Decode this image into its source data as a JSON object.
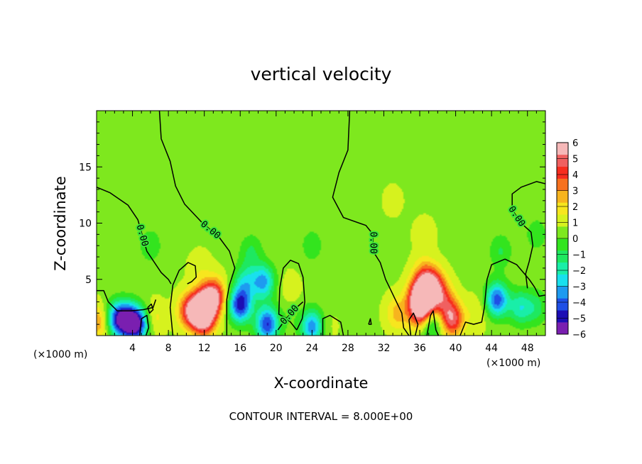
{
  "chart_data": {
    "type": "heatmap",
    "title": "vertical velocity",
    "xlabel": "X-coordinate",
    "ylabel": "Z-coordinate",
    "x_unit_left": "(×1000 m)",
    "x_unit_right": "(×1000 m)",
    "xlim": [
      0,
      50
    ],
    "ylim": [
      0,
      20
    ],
    "x_ticks": [
      4,
      8,
      12,
      16,
      20,
      24,
      28,
      32,
      36,
      40,
      44,
      48
    ],
    "x_tick_labels": [
      "4",
      "8",
      "12",
      "16",
      "20",
      "24",
      "28",
      "32",
      "36",
      "40",
      "44",
      "48"
    ],
    "y_ticks": [
      5,
      10,
      15
    ],
    "y_tick_labels": [
      "5",
      "10",
      "15"
    ],
    "colorbar": {
      "min": -6,
      "max": 6,
      "ticks": [
        6,
        5,
        4,
        3,
        2,
        1,
        0,
        -1,
        -2,
        -3,
        -4,
        -5,
        -6
      ],
      "tick_labels": [
        "6",
        "5",
        "4",
        "3",
        "2",
        "1",
        "0",
        "−1",
        "−2",
        "−3",
        "−4",
        "−5",
        "−6"
      ],
      "colors": [
        "#7a1fb0",
        "#1c0db4",
        "#1f4fe6",
        "#1e9af0",
        "#19e0ee",
        "#19eea8",
        "#1ee860",
        "#33e41e",
        "#7ee81e",
        "#d6f21e",
        "#f7e61e",
        "#f7b41e",
        "#f7711e",
        "#f72d1e",
        "#f06060",
        "#f6b8b8"
      ]
    },
    "background_value": 0.6,
    "field_features": [
      {
        "x": 2.2,
        "z": 1.5,
        "value": -3.5
      },
      {
        "x": 3.5,
        "z": 1.3,
        "value": -4.8
      },
      {
        "x": 4.7,
        "z": 1.0,
        "value": -4.0
      },
      {
        "x": 0.3,
        "z": 1.2,
        "value": 3.0
      },
      {
        "x": 6.3,
        "z": 1.5,
        "value": 2.0
      },
      {
        "x": 10.2,
        "z": 2.2,
        "value": 3.5
      },
      {
        "x": 11.3,
        "z": 2.3,
        "value": 5.0
      },
      {
        "x": 12.5,
        "z": 3.0,
        "value": 5.5
      },
      {
        "x": 12.0,
        "z": 1.4,
        "value": 4.5
      },
      {
        "x": 13.3,
        "z": 3.7,
        "value": 3.2
      },
      {
        "x": 11.5,
        "z": 6.0,
        "value": 1.3
      },
      {
        "x": 16.0,
        "z": 2.7,
        "value": -4.8
      },
      {
        "x": 16.6,
        "z": 4.8,
        "value": -1.8
      },
      {
        "x": 18.6,
        "z": 4.8,
        "value": -3.2
      },
      {
        "x": 17.2,
        "z": 7.5,
        "value": -0.8
      },
      {
        "x": 19.0,
        "z": 1.0,
        "value": -4.5
      },
      {
        "x": 21.5,
        "z": 4.2,
        "value": 1.2
      },
      {
        "x": 21.3,
        "z": 1.5,
        "value": 0.2
      },
      {
        "x": 24.0,
        "z": 0.8,
        "value": -3.5
      },
      {
        "x": 25.8,
        "z": 0.8,
        "value": 1.0
      },
      {
        "x": 24.0,
        "z": 8.0,
        "value": -0.5
      },
      {
        "x": 33.5,
        "z": 2.0,
        "value": 2.5
      },
      {
        "x": 35.8,
        "z": 3.5,
        "value": 4.0
      },
      {
        "x": 36.6,
        "z": 3.3,
        "value": 5.8
      },
      {
        "x": 36.0,
        "z": 2.0,
        "value": 4.2
      },
      {
        "x": 37.6,
        "z": 4.5,
        "value": 4.0
      },
      {
        "x": 36.5,
        "z": 5.3,
        "value": 3.0
      },
      {
        "x": 38.6,
        "z": 3.2,
        "value": 3.2
      },
      {
        "x": 39.6,
        "z": 1.5,
        "value": 5.0
      },
      {
        "x": 37.2,
        "z": 1.0,
        "value": -1.8
      },
      {
        "x": 36.5,
        "z": 9.0,
        "value": 1.2
      },
      {
        "x": 33.0,
        "z": 12.0,
        "value": 1.0
      },
      {
        "x": 42.5,
        "z": 2.0,
        "value": 1.5
      },
      {
        "x": 44.6,
        "z": 3.2,
        "value": -4.2
      },
      {
        "x": 47.2,
        "z": 2.5,
        "value": -2.0
      },
      {
        "x": 49.0,
        "z": 2.5,
        "value": -1.0
      },
      {
        "x": 45.0,
        "z": 7.5,
        "value": -0.8
      },
      {
        "x": 6.0,
        "z": 8.0,
        "value": -0.6
      },
      {
        "x": 49.0,
        "z": 9.0,
        "value": -0.5
      }
    ],
    "contours": [
      {
        "label": "0.00",
        "points": [
          [
            7.0,
            20
          ],
          [
            7.2,
            17.5
          ],
          [
            8.2,
            15.5
          ],
          [
            8.8,
            13.3
          ],
          [
            9.8,
            11.7
          ],
          [
            11.8,
            10.0
          ],
          [
            13.6,
            8.8
          ],
          [
            14.8,
            7.5
          ],
          [
            15.4,
            6.0
          ],
          [
            14.8,
            4.5
          ],
          [
            14.5,
            3.2
          ],
          [
            14.5,
            0
          ]
        ]
      },
      {
        "label": "0.00",
        "points": [
          [
            0,
            13.2
          ],
          [
            1.5,
            12.7
          ],
          [
            3.5,
            11.6
          ],
          [
            4.6,
            10.3
          ],
          [
            5.6,
            7.5
          ],
          [
            7.2,
            5.6
          ],
          [
            8.0,
            5.0
          ],
          [
            8.3,
            4.6
          ]
        ]
      },
      {
        "label": "",
        "points": [
          [
            0,
            4.0
          ],
          [
            0.8,
            4.0
          ],
          [
            1.3,
            3.0
          ],
          [
            2.3,
            2.2
          ],
          [
            3.8,
            2.2
          ],
          [
            5.2,
            2.3
          ],
          [
            6.3,
            2.5
          ],
          [
            6.6,
            3.2
          ]
        ]
      },
      {
        "label": "",
        "points": [
          [
            8.5,
            0
          ],
          [
            8.2,
            2.5
          ],
          [
            8.5,
            4.5
          ],
          [
            9.2,
            5.8
          ],
          [
            10.2,
            6.5
          ],
          [
            11.0,
            6.2
          ],
          [
            11.1,
            5.2
          ],
          [
            10.6,
            4.8
          ],
          [
            10.1,
            4.6
          ]
        ]
      },
      {
        "label": "0.00",
        "points": [
          [
            28.2,
            20
          ],
          [
            28.0,
            16.5
          ],
          [
            27.0,
            14.5
          ],
          [
            26.3,
            12.3
          ],
          [
            27.5,
            10.5
          ],
          [
            30.0,
            9.8
          ],
          [
            30.8,
            9.0
          ],
          [
            30.8,
            7.5
          ],
          [
            31.6,
            6.5
          ],
          [
            32.2,
            5.0
          ],
          [
            32.8,
            4.0
          ],
          [
            33.4,
            3.0
          ],
          [
            34.0,
            2.0
          ],
          [
            34.2,
            0.7
          ],
          [
            34.8,
            0
          ]
        ]
      },
      {
        "label": "",
        "points": [
          [
            22.3,
            0.5
          ],
          [
            21.6,
            1.2
          ],
          [
            21.0,
            1.6
          ],
          [
            20.3,
            1.9
          ],
          [
            20.4,
            4.2
          ],
          [
            20.8,
            6.0
          ],
          [
            21.6,
            6.7
          ],
          [
            22.5,
            6.4
          ],
          [
            23.0,
            5.2
          ],
          [
            23.2,
            3.0
          ],
          [
            22.9,
            1.5
          ],
          [
            22.3,
            0.5
          ]
        ]
      },
      {
        "label": "0.00",
        "points": [
          [
            20.2,
            0.5
          ],
          [
            21.0,
            1.4
          ],
          [
            22.0,
            2.3
          ],
          [
            23.0,
            3.0
          ]
        ]
      },
      {
        "label": "",
        "points": [
          [
            25.2,
            0
          ],
          [
            25.2,
            1.5
          ],
          [
            26.0,
            1.8
          ],
          [
            27.2,
            1.2
          ],
          [
            27.5,
            0
          ]
        ]
      },
      {
        "label": "",
        "points": [
          [
            35.0,
            0
          ],
          [
            34.8,
            1.4
          ],
          [
            35.3,
            2.0
          ],
          [
            35.8,
            1.0
          ],
          [
            35.5,
            0
          ]
        ]
      },
      {
        "label": "",
        "points": [
          [
            36.8,
            0
          ],
          [
            37.2,
            1.8
          ],
          [
            37.5,
            2.2
          ],
          [
            37.8,
            0.5
          ],
          [
            38.1,
            0
          ]
        ]
      },
      {
        "label": "",
        "points": [
          [
            40.5,
            0
          ],
          [
            41.1,
            1.2
          ],
          [
            42.0,
            1.0
          ],
          [
            42.9,
            1.2
          ],
          [
            43.2,
            2.5
          ],
          [
            43.5,
            5.0
          ],
          [
            44.0,
            6.3
          ],
          [
            45.5,
            6.8
          ],
          [
            46.8,
            6.3
          ],
          [
            48.2,
            5.0
          ],
          [
            48.8,
            4.3
          ],
          [
            49.3,
            3.5
          ],
          [
            50,
            3.6
          ]
        ]
      },
      {
        "label": "0.00",
        "points": [
          [
            50,
            13.5
          ],
          [
            49.0,
            13.7
          ],
          [
            47.3,
            13.2
          ],
          [
            46.3,
            12.6
          ],
          [
            46.3,
            11.2
          ],
          [
            47.3,
            10.0
          ],
          [
            48.4,
            9.2
          ],
          [
            48.6,
            8.0
          ],
          [
            48.2,
            6.6
          ],
          [
            47.8,
            5.5
          ],
          [
            48.0,
            4.2
          ]
        ]
      },
      {
        "label": "",
        "points": [
          [
            5.7,
            2.5
          ],
          [
            5.9,
            2.0
          ],
          [
            6.3,
            2.3
          ],
          [
            6.1,
            2.8
          ],
          [
            5.7,
            2.5
          ]
        ]
      },
      {
        "label": "",
        "points": [
          [
            30.3,
            1.0
          ],
          [
            30.5,
            1.5
          ],
          [
            30.6,
            1.0
          ],
          [
            30.3,
            1.0
          ]
        ]
      },
      {
        "label": "",
        "points": [
          [
            4.8,
            0
          ],
          [
            5.0,
            1.5
          ],
          [
            5.6,
            1.8
          ],
          [
            5.8,
            0.7
          ],
          [
            5.5,
            0
          ]
        ]
      }
    ],
    "footer": "CONTOUR INTERVAL = 8.000E+00"
  }
}
